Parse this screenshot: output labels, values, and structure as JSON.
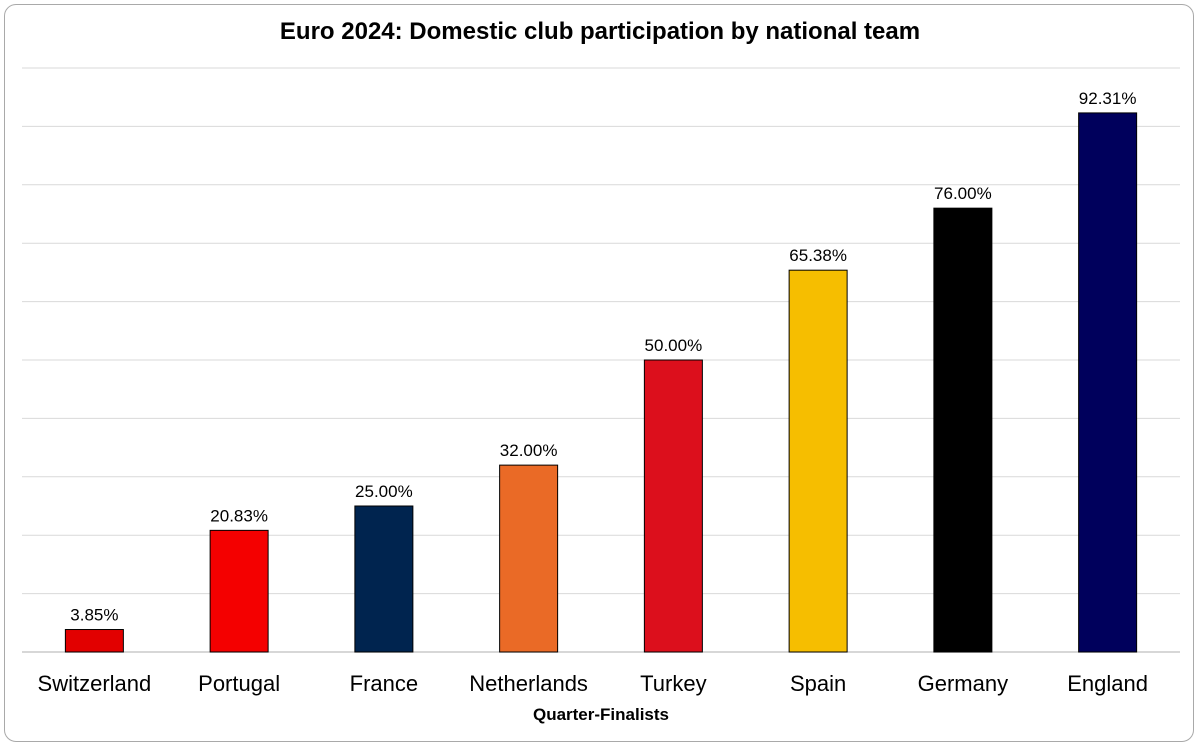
{
  "chart_data": {
    "type": "bar",
    "title": "Euro 2024: Domestic club participation by national team",
    "xlabel": "Quarter-Finalists",
    "ylabel": "",
    "categories": [
      "Switzerland",
      "Portugal",
      "France",
      "Netherlands",
      "Turkey",
      "Spain",
      "Germany",
      "England"
    ],
    "values": [
      3.85,
      20.83,
      25.0,
      32.0,
      50.0,
      65.38,
      76.0,
      92.31
    ],
    "value_labels": [
      "3.85%",
      "20.83%",
      "25.00%",
      "32.00%",
      "50.00%",
      "65.38%",
      "76.00%",
      "92.31%"
    ],
    "colors": [
      "#e20000",
      "#f40000",
      "#00244f",
      "#ea6a26",
      "#dc0f1c",
      "#f6be00",
      "#000000",
      "#00005c"
    ],
    "ylim": [
      0,
      100
    ],
    "grid": true,
    "legend": "none"
  }
}
